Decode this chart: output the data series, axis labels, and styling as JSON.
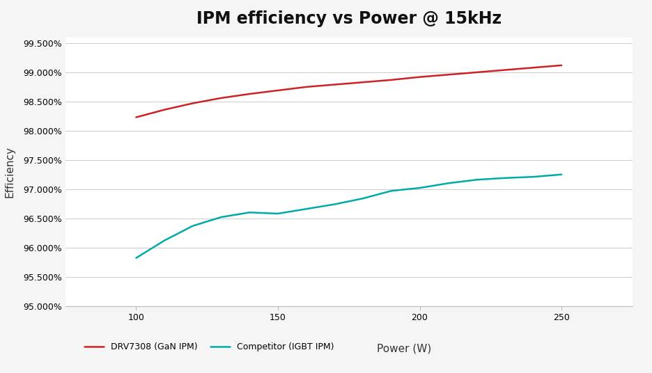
{
  "title": "IPM efficiency vs Power @ 15kHz",
  "xlabel": "Power (W)",
  "ylabel": "Efficiency",
  "xlim": [
    75,
    275
  ],
  "ylim": [
    0.95,
    0.996
  ],
  "xticks": [
    100,
    150,
    200,
    250
  ],
  "yticks": [
    0.95,
    0.955,
    0.96,
    0.965,
    0.97,
    0.975,
    0.98,
    0.985,
    0.99,
    0.995
  ],
  "gan_x": [
    100,
    110,
    120,
    130,
    140,
    150,
    160,
    170,
    180,
    190,
    200,
    210,
    220,
    230,
    240,
    250
  ],
  "gan_y": [
    0.9823,
    0.9836,
    0.9847,
    0.9856,
    0.9863,
    0.9869,
    0.9875,
    0.9879,
    0.9883,
    0.9887,
    0.9892,
    0.9896,
    0.99,
    0.9904,
    0.9908,
    0.9912
  ],
  "igbt_x": [
    100,
    110,
    120,
    130,
    140,
    150,
    160,
    170,
    180,
    190,
    200,
    210,
    220,
    230,
    240,
    250
  ],
  "igbt_y": [
    0.9582,
    0.9612,
    0.9637,
    0.9652,
    0.966,
    0.9658,
    0.9666,
    0.9674,
    0.9684,
    0.9697,
    0.9702,
    0.971,
    0.9716,
    0.9719,
    0.9721,
    0.9725
  ],
  "gan_color": "#cc2222",
  "igbt_color": "#00aaaa",
  "background_color": "#f5f5f5",
  "plot_bg_color": "#ffffff",
  "grid_color": "#cccccc",
  "gan_label": "DRV7308 (GaN IPM)",
  "igbt_label": "Competitor (IGBT IPM)",
  "title_fontsize": 17,
  "axis_label_fontsize": 11,
  "tick_fontsize": 9,
  "legend_fontsize": 9,
  "line_width": 1.8
}
